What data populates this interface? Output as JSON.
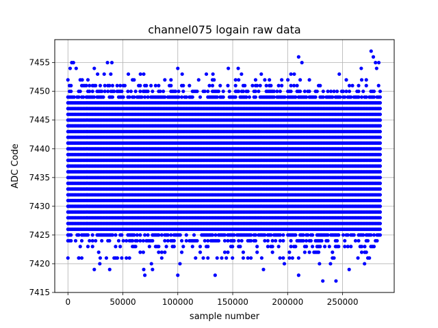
{
  "chart_data": {
    "type": "scatter",
    "title": "channel075 logain raw data",
    "xlabel": "sample number",
    "ylabel": "ADC Code",
    "xlim": [
      -12000,
      297000
    ],
    "ylim": [
      7415,
      7459
    ],
    "x_ticks": [
      0,
      50000,
      100000,
      150000,
      200000,
      250000
    ],
    "y_ticks": [
      7415,
      7420,
      7425,
      7430,
      7435,
      7440,
      7445,
      7450,
      7455
    ],
    "grid": true,
    "marker_color": "#0000ff",
    "series": [
      {
        "x_range": [
          0,
          285000
        ],
        "dense_band": [
          7422,
          7451
        ],
        "core_band": [
          7426,
          7448
        ],
        "sparse_outliers": [
          {
            "x": 2000,
            "y": 7454
          },
          {
            "x": 3500,
            "y": 7455
          },
          {
            "x": 5000,
            "y": 7455
          },
          {
            "x": 7500,
            "y": 7454
          },
          {
            "x": 13000,
            "y": 7452
          },
          {
            "x": 24000,
            "y": 7454
          },
          {
            "x": 27000,
            "y": 7453
          },
          {
            "x": 33000,
            "y": 7453
          },
          {
            "x": 36000,
            "y": 7455
          },
          {
            "x": 39000,
            "y": 7453
          },
          {
            "x": 40000,
            "y": 7455
          },
          {
            "x": 55000,
            "y": 7453
          },
          {
            "x": 66000,
            "y": 7453
          },
          {
            "x": 69000,
            "y": 7453
          },
          {
            "x": 100000,
            "y": 7454
          },
          {
            "x": 104000,
            "y": 7453
          },
          {
            "x": 126000,
            "y": 7453
          },
          {
            "x": 132000,
            "y": 7453
          },
          {
            "x": 146000,
            "y": 7454
          },
          {
            "x": 155000,
            "y": 7454
          },
          {
            "x": 158000,
            "y": 7453
          },
          {
            "x": 176000,
            "y": 7453
          },
          {
            "x": 203000,
            "y": 7453
          },
          {
            "x": 206000,
            "y": 7453
          },
          {
            "x": 210000,
            "y": 7456
          },
          {
            "x": 213000,
            "y": 7455
          },
          {
            "x": 247000,
            "y": 7453
          },
          {
            "x": 267000,
            "y": 7454
          },
          {
            "x": 276000,
            "y": 7457
          },
          {
            "x": 278000,
            "y": 7456
          },
          {
            "x": 280000,
            "y": 7455
          },
          {
            "x": 281000,
            "y": 7454
          },
          {
            "x": 283000,
            "y": 7455
          },
          {
            "x": 10000,
            "y": 7421
          },
          {
            "x": 24000,
            "y": 7419
          },
          {
            "x": 29000,
            "y": 7420
          },
          {
            "x": 38000,
            "y": 7419
          },
          {
            "x": 45000,
            "y": 7421
          },
          {
            "x": 69000,
            "y": 7419
          },
          {
            "x": 70000,
            "y": 7418
          },
          {
            "x": 76000,
            "y": 7420
          },
          {
            "x": 77000,
            "y": 7419
          },
          {
            "x": 100000,
            "y": 7418
          },
          {
            "x": 102000,
            "y": 7420
          },
          {
            "x": 134000,
            "y": 7418
          },
          {
            "x": 140000,
            "y": 7421
          },
          {
            "x": 178000,
            "y": 7419
          },
          {
            "x": 193000,
            "y": 7421
          },
          {
            "x": 197000,
            "y": 7420
          },
          {
            "x": 210000,
            "y": 7418
          },
          {
            "x": 229000,
            "y": 7420
          },
          {
            "x": 232000,
            "y": 7417
          },
          {
            "x": 239000,
            "y": 7420
          },
          {
            "x": 244000,
            "y": 7417
          },
          {
            "x": 256000,
            "y": 7419
          },
          {
            "x": 264000,
            "y": 7421
          },
          {
            "x": 270000,
            "y": 7420
          }
        ]
      }
    ]
  }
}
